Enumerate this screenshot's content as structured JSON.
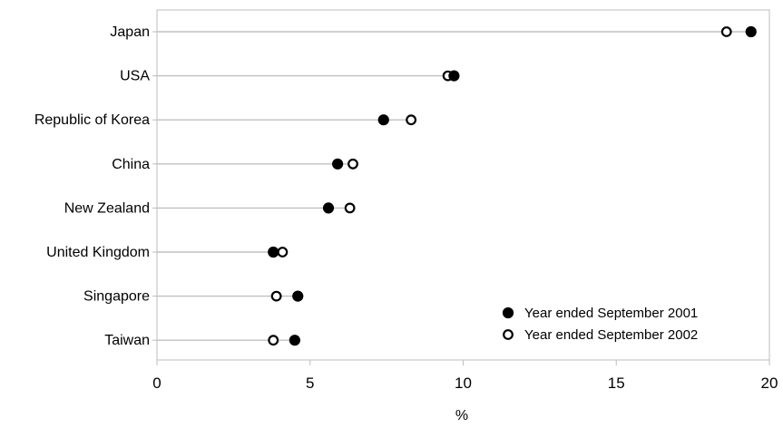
{
  "chart_data": {
    "type": "dot",
    "title": "",
    "xlabel": "%",
    "ylabel": "",
    "xlim": [
      0,
      20
    ],
    "x_ticks": [
      0,
      5,
      10,
      15,
      20
    ],
    "categories": [
      "Japan",
      "USA",
      "Republic of Korea",
      "China",
      "New Zealand",
      "United Kingdom",
      "Singapore",
      "Taiwan"
    ],
    "series": [
      {
        "name": "Year ended September 2001",
        "marker": "filled-circle",
        "values": [
          19.4,
          9.7,
          7.4,
          5.9,
          5.6,
          3.8,
          4.6,
          4.5
        ]
      },
      {
        "name": "Year ended September 2002",
        "marker": "open-circle",
        "values": [
          18.6,
          9.5,
          8.3,
          6.4,
          6.3,
          4.1,
          3.9,
          3.8
        ]
      }
    ],
    "grid": false,
    "legend_position": "bottom-right",
    "colors": {
      "axis": "#bdbdbd",
      "line": "#c0c0c0",
      "marker": "#000000",
      "background": "#ffffff"
    }
  }
}
